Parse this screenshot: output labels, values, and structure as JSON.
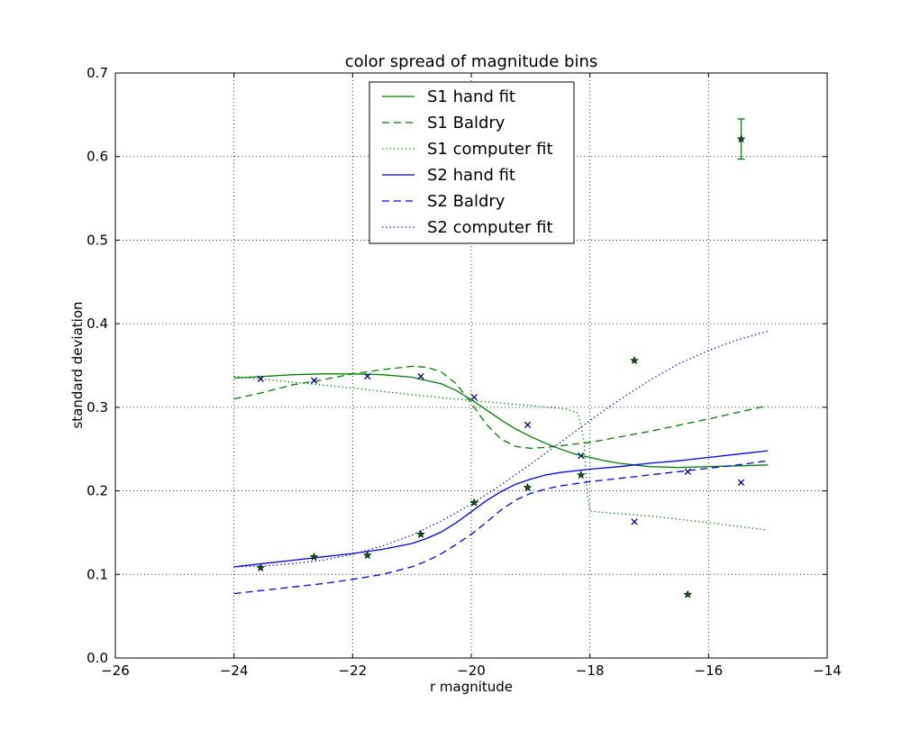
{
  "chart_data": {
    "type": "line",
    "title": "color spread of magnitude bins",
    "xlabel": "r magnitude",
    "ylabel": "standard deviation",
    "xlim": [
      -26,
      -14
    ],
    "ylim": [
      0.0,
      0.7
    ],
    "xticks": [
      -26,
      -24,
      -22,
      -20,
      -18,
      -16,
      -14
    ],
    "yticks": [
      0.0,
      0.1,
      0.2,
      0.3,
      0.4,
      0.5,
      0.6,
      0.7
    ],
    "xtick_labels": [
      "−26",
      "−24",
      "−22",
      "−20",
      "−18",
      "−16",
      "−14"
    ],
    "ytick_labels": [
      "0.0",
      "0.1",
      "0.2",
      "0.3",
      "0.4",
      "0.5",
      "0.6",
      "0.7"
    ],
    "grid": true,
    "legend_position": "top-center",
    "series": [
      {
        "name": "S1 hand fit",
        "color": "#008000",
        "style": "solid",
        "x": [
          -24,
          -23.5,
          -23,
          -22.5,
          -22,
          -21.5,
          -21,
          -20.5,
          -20.25,
          -20,
          -19.75,
          -19.5,
          -19.25,
          -19,
          -18.75,
          -18.5,
          -18.25,
          -18,
          -17.75,
          -17.5,
          -17.25,
          -17,
          -16.5,
          -16,
          -15.5,
          -15
        ],
        "y": [
          0.335,
          0.337,
          0.339,
          0.34,
          0.34,
          0.339,
          0.336,
          0.328,
          0.32,
          0.309,
          0.297,
          0.285,
          0.274,
          0.265,
          0.257,
          0.25,
          0.244,
          0.24,
          0.236,
          0.233,
          0.231,
          0.229,
          0.228,
          0.229,
          0.23,
          0.231
        ]
      },
      {
        "name": "S1 Baldry",
        "color": "#008000",
        "style": "dashed",
        "x": [
          -24,
          -23.5,
          -23,
          -22.5,
          -22,
          -21.5,
          -21,
          -20.75,
          -20.5,
          -20.25,
          -20,
          -19.75,
          -19.5,
          -19.25,
          -19,
          -18.75,
          -18.5,
          -18,
          -17,
          -16,
          -15
        ],
        "y": [
          0.31,
          0.318,
          0.327,
          0.333,
          0.34,
          0.345,
          0.349,
          0.348,
          0.342,
          0.328,
          0.305,
          0.28,
          0.262,
          0.253,
          0.251,
          0.252,
          0.254,
          0.258,
          0.271,
          0.286,
          0.302
        ]
      },
      {
        "name": "S1 computer fit",
        "color": "#008000",
        "style": "dotted",
        "x": [
          -24,
          -23,
          -22,
          -21,
          -20,
          -19,
          -18.4,
          -18.2,
          -18.1,
          -18.05,
          -18,
          -17.9,
          -17,
          -16,
          -15
        ],
        "y": [
          0.337,
          0.33,
          0.323,
          0.315,
          0.308,
          0.302,
          0.298,
          0.293,
          0.26,
          0.2,
          0.176,
          0.175,
          0.17,
          0.162,
          0.153
        ]
      },
      {
        "name": "S2 hand fit",
        "color": "#0000ff",
        "style": "solid",
        "x": [
          -24,
          -23.5,
          -23,
          -22.5,
          -22,
          -21.5,
          -21,
          -20.75,
          -20.5,
          -20.25,
          -20,
          -19.75,
          -19.5,
          -19.25,
          -19,
          -18.75,
          -18.5,
          -18,
          -17.5,
          -17,
          -16.5,
          -16,
          -15.5,
          -15
        ],
        "y": [
          0.109,
          0.113,
          0.117,
          0.121,
          0.125,
          0.13,
          0.137,
          0.143,
          0.151,
          0.162,
          0.175,
          0.188,
          0.199,
          0.208,
          0.214,
          0.219,
          0.222,
          0.226,
          0.229,
          0.233,
          0.236,
          0.24,
          0.244,
          0.248
        ]
      },
      {
        "name": "S2 Baldry",
        "color": "#0000ff",
        "style": "dashed",
        "x": [
          -24,
          -23.5,
          -23,
          -22.5,
          -22,
          -21.5,
          -21,
          -20.75,
          -20.5,
          -20.25,
          -20,
          -19.75,
          -19.5,
          -19.25,
          -19,
          -18.75,
          -18.5,
          -18,
          -17.5,
          -17,
          -16.5,
          -16,
          -15.5,
          -15
        ],
        "y": [
          0.077,
          0.081,
          0.085,
          0.089,
          0.094,
          0.1,
          0.109,
          0.116,
          0.125,
          0.136,
          0.148,
          0.162,
          0.177,
          0.189,
          0.197,
          0.202,
          0.206,
          0.211,
          0.215,
          0.219,
          0.223,
          0.227,
          0.231,
          0.236
        ]
      },
      {
        "name": "S2 computer fit",
        "color": "#0000ff",
        "style": "dotted",
        "x": [
          -24,
          -23.5,
          -23,
          -22.5,
          -22,
          -21.5,
          -21,
          -20.5,
          -20,
          -19.5,
          -19,
          -18.5,
          -18,
          -17.5,
          -17,
          -16.5,
          -16,
          -15.5,
          -15
        ],
        "y": [
          0.109,
          0.11,
          0.113,
          0.117,
          0.124,
          0.134,
          0.147,
          0.164,
          0.184,
          0.207,
          0.232,
          0.258,
          0.284,
          0.309,
          0.332,
          0.352,
          0.368,
          0.381,
          0.391
        ]
      }
    ],
    "points_x_marker": {
      "color": "#000080",
      "x": [
        -23.55,
        -22.65,
        -21.75,
        -20.85,
        -19.95,
        -19.05,
        -18.15,
        -17.25,
        -16.35,
        -15.45
      ],
      "y": [
        0.334,
        0.332,
        0.337,
        0.337,
        0.312,
        0.279,
        0.242,
        0.163,
        0.223,
        0.21
      ]
    },
    "points_star_marker": {
      "color": "#006400",
      "x": [
        -23.55,
        -22.65,
        -21.75,
        -20.85,
        -19.95,
        -19.05,
        -18.15,
        -17.25,
        -16.35,
        -15.45
      ],
      "y": [
        0.108,
        0.121,
        0.123,
        0.148,
        0.186,
        0.204,
        0.219,
        0.356,
        0.076,
        0.621
      ]
    },
    "error_bar": {
      "color": "#008000",
      "x": -15.45,
      "y": 0.621,
      "ylow": 0.597,
      "yhigh": 0.645
    }
  }
}
